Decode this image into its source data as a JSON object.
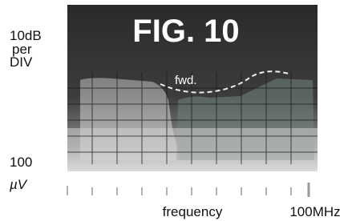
{
  "scale_label": [
    "10dB",
    "per",
    "DIV"
  ],
  "figure_title": "FIG. 10",
  "trace_label": "fwd.",
  "reference_label": [
    "100",
    "µV"
  ],
  "x_axis_label": "frequency",
  "x_axis_end": "100MHz"
}
